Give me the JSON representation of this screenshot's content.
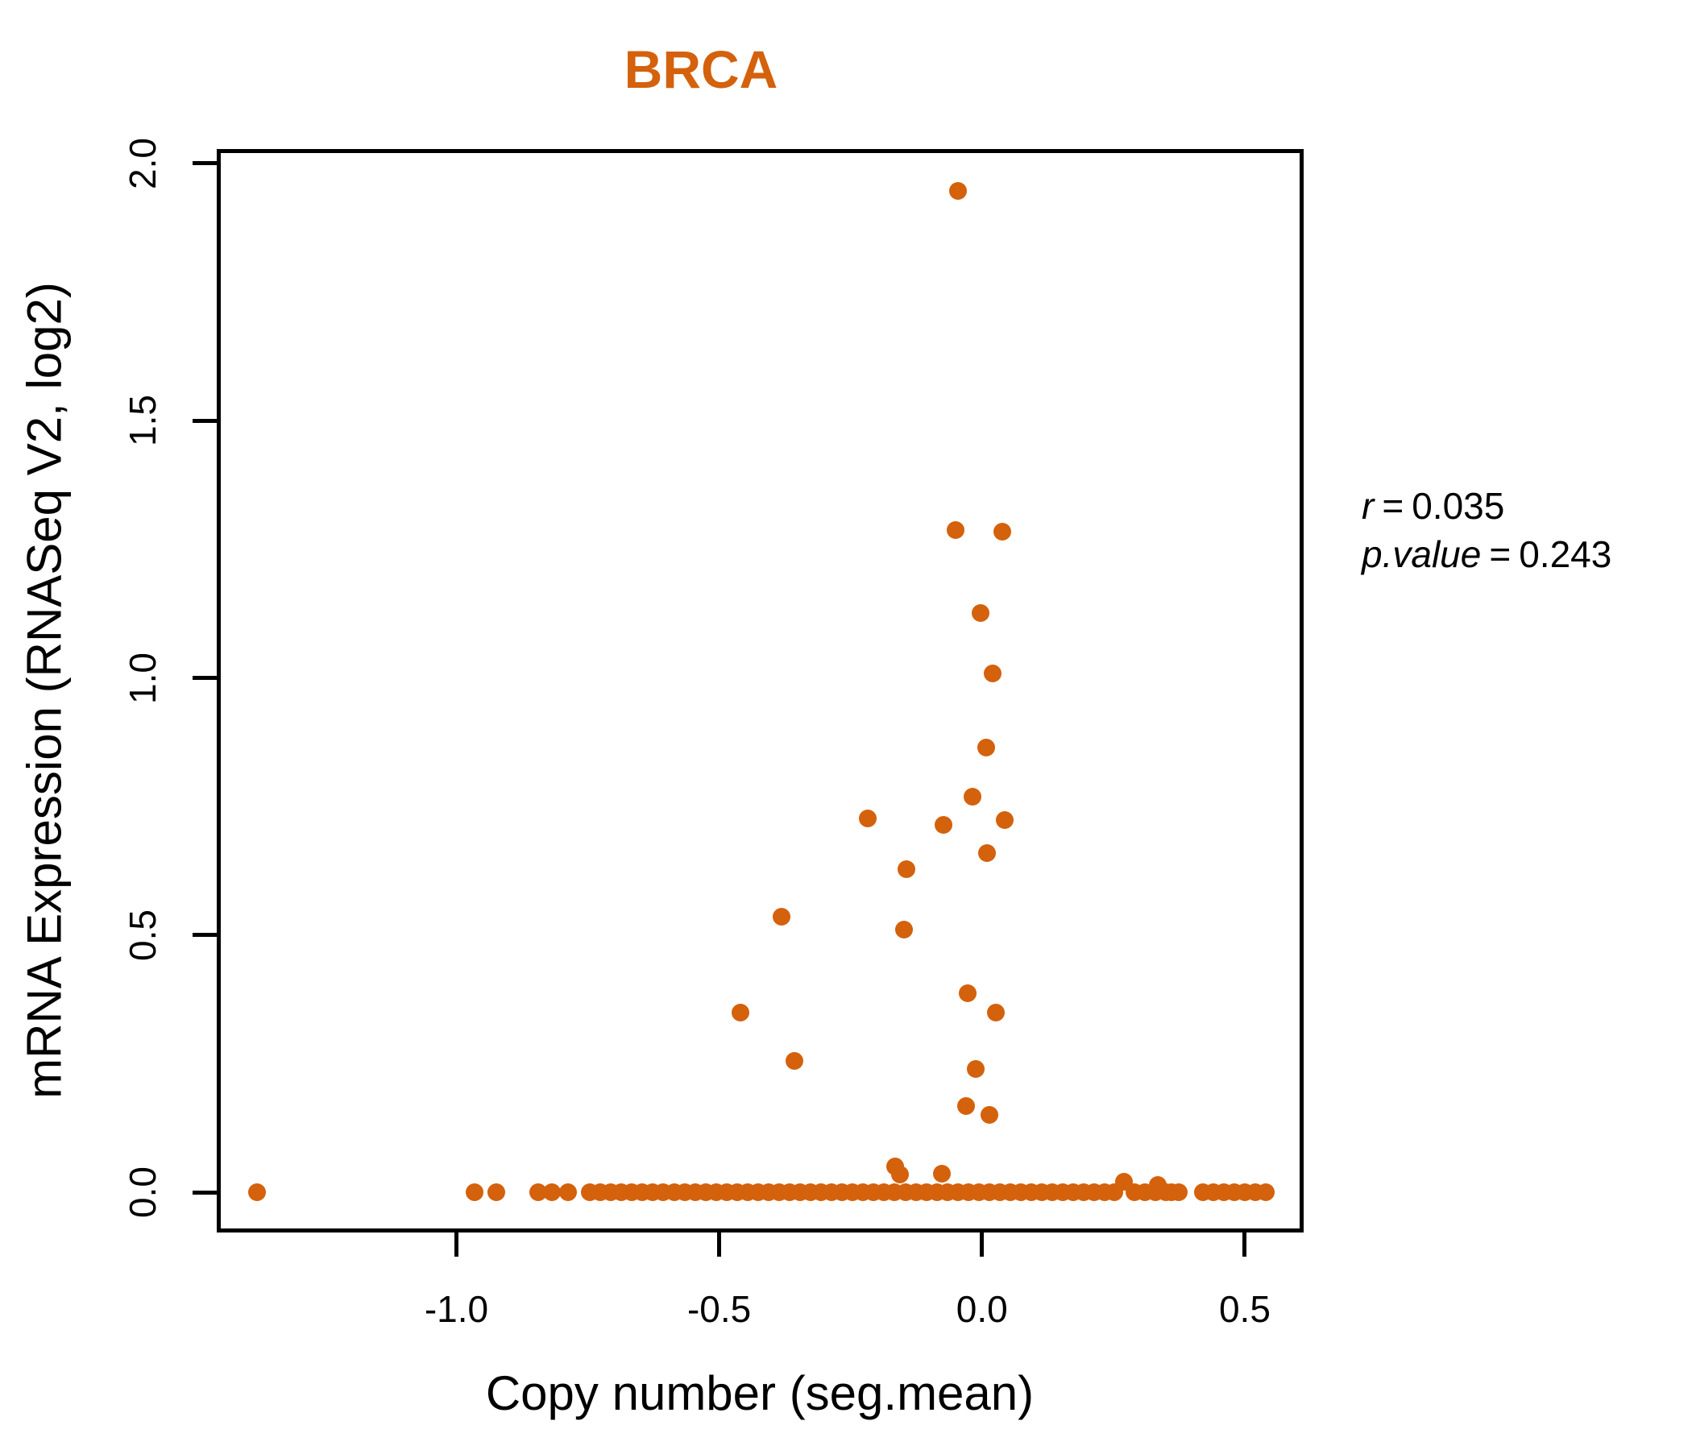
{
  "chart_data": {
    "type": "scatter",
    "title": "BRCA",
    "xlabel": "Copy number (seg.mean)",
    "ylabel": "mRNA Expression (RNASeq V2, log2)",
    "xlim": [
      -1.456,
      0.612
    ],
    "ylim": [
      -0.078,
      2.028
    ],
    "x_ticks": [
      -1.0,
      -0.5,
      0.0,
      0.5
    ],
    "x_tick_labels": [
      "-1.0",
      "-0.5",
      "0.0",
      "0.5"
    ],
    "y_ticks": [
      0.0,
      0.5,
      1.0,
      1.5,
      2.0
    ],
    "y_tick_labels": [
      "0.0",
      "0.5",
      "1.0",
      "1.5",
      "2.0"
    ],
    "grid": false,
    "legend": "none",
    "point_color": "#D4610C",
    "title_color": "#D4610C",
    "axis_color": "#000000",
    "background_color": "#FFFFFF",
    "annotation": {
      "line1": {
        "label": "r",
        "eq": "=",
        "value": "0.035"
      },
      "line2": {
        "label": "p.value",
        "eq": "=",
        "value": "0.243"
      }
    },
    "points": [
      [
        -0.046,
        1.947
      ],
      [
        -0.05,
        1.287
      ],
      [
        0.038,
        1.284
      ],
      [
        -0.002,
        1.126
      ],
      [
        0.021,
        1.008
      ],
      [
        0.008,
        0.864
      ],
      [
        -0.018,
        0.769
      ],
      [
        -0.217,
        0.727
      ],
      [
        -0.073,
        0.714
      ],
      [
        0.044,
        0.723
      ],
      [
        0.009,
        0.659
      ],
      [
        -0.143,
        0.628
      ],
      [
        -0.381,
        0.536
      ],
      [
        -0.148,
        0.51
      ],
      [
        -0.028,
        0.387
      ],
      [
        0.026,
        0.349
      ],
      [
        -0.46,
        0.349
      ],
      [
        -0.357,
        0.255
      ],
      [
        -0.012,
        0.24
      ],
      [
        -0.031,
        0.168
      ],
      [
        0.014,
        0.15
      ],
      [
        -0.165,
        0.051
      ],
      [
        -0.156,
        0.034
      ],
      [
        -0.077,
        0.037
      ],
      [
        0.27,
        0.02
      ],
      [
        0.335,
        0.015
      ],
      [
        -1.379,
        0.0
      ],
      [
        -0.965,
        0.0
      ],
      [
        -0.924,
        0.0
      ],
      [
        -0.845,
        0.0
      ],
      [
        -0.818,
        0.0
      ],
      [
        -0.787,
        0.0
      ],
      [
        -0.746,
        0.0
      ],
      [
        -0.726,
        0.0
      ],
      [
        -0.706,
        0.0
      ],
      [
        -0.686,
        0.0
      ],
      [
        -0.666,
        0.0
      ],
      [
        -0.646,
        0.0
      ],
      [
        -0.626,
        0.0
      ],
      [
        -0.606,
        0.0
      ],
      [
        -0.586,
        0.0
      ],
      [
        -0.566,
        0.0
      ],
      [
        -0.546,
        0.0
      ],
      [
        -0.526,
        0.0
      ],
      [
        -0.506,
        0.0
      ],
      [
        -0.486,
        0.0
      ],
      [
        -0.466,
        0.0
      ],
      [
        -0.446,
        0.0
      ],
      [
        -0.426,
        0.0
      ],
      [
        -0.406,
        0.0
      ],
      [
        -0.386,
        0.0
      ],
      [
        -0.366,
        0.0
      ],
      [
        -0.346,
        0.0
      ],
      [
        -0.326,
        0.0
      ],
      [
        -0.306,
        0.0
      ],
      [
        -0.286,
        0.0
      ],
      [
        -0.266,
        0.0
      ],
      [
        -0.246,
        0.0
      ],
      [
        -0.226,
        0.0
      ],
      [
        -0.206,
        0.0
      ],
      [
        -0.186,
        0.0
      ],
      [
        -0.166,
        0.0
      ],
      [
        -0.146,
        0.0
      ],
      [
        -0.126,
        0.0
      ],
      [
        -0.106,
        0.0
      ],
      [
        -0.086,
        0.0
      ],
      [
        -0.066,
        0.0
      ],
      [
        -0.046,
        0.0
      ],
      [
        -0.026,
        0.0
      ],
      [
        -0.006,
        0.0
      ],
      [
        0.014,
        0.0
      ],
      [
        0.034,
        0.0
      ],
      [
        0.054,
        0.0
      ],
      [
        0.074,
        0.0
      ],
      [
        0.094,
        0.0
      ],
      [
        0.114,
        0.0
      ],
      [
        0.134,
        0.0
      ],
      [
        0.154,
        0.0
      ],
      [
        0.174,
        0.0
      ],
      [
        0.194,
        0.0
      ],
      [
        0.214,
        0.0
      ],
      [
        0.234,
        0.0
      ],
      [
        0.251,
        0.0
      ],
      [
        0.29,
        0.0
      ],
      [
        0.31,
        0.0
      ],
      [
        0.33,
        0.0
      ],
      [
        0.35,
        0.0
      ],
      [
        0.36,
        0.0
      ],
      [
        0.375,
        0.0
      ],
      [
        0.42,
        0.0
      ],
      [
        0.44,
        0.0
      ],
      [
        0.46,
        0.0
      ],
      [
        0.48,
        0.0
      ],
      [
        0.5,
        0.0
      ],
      [
        0.52,
        0.0
      ],
      [
        0.54,
        0.0
      ]
    ]
  }
}
